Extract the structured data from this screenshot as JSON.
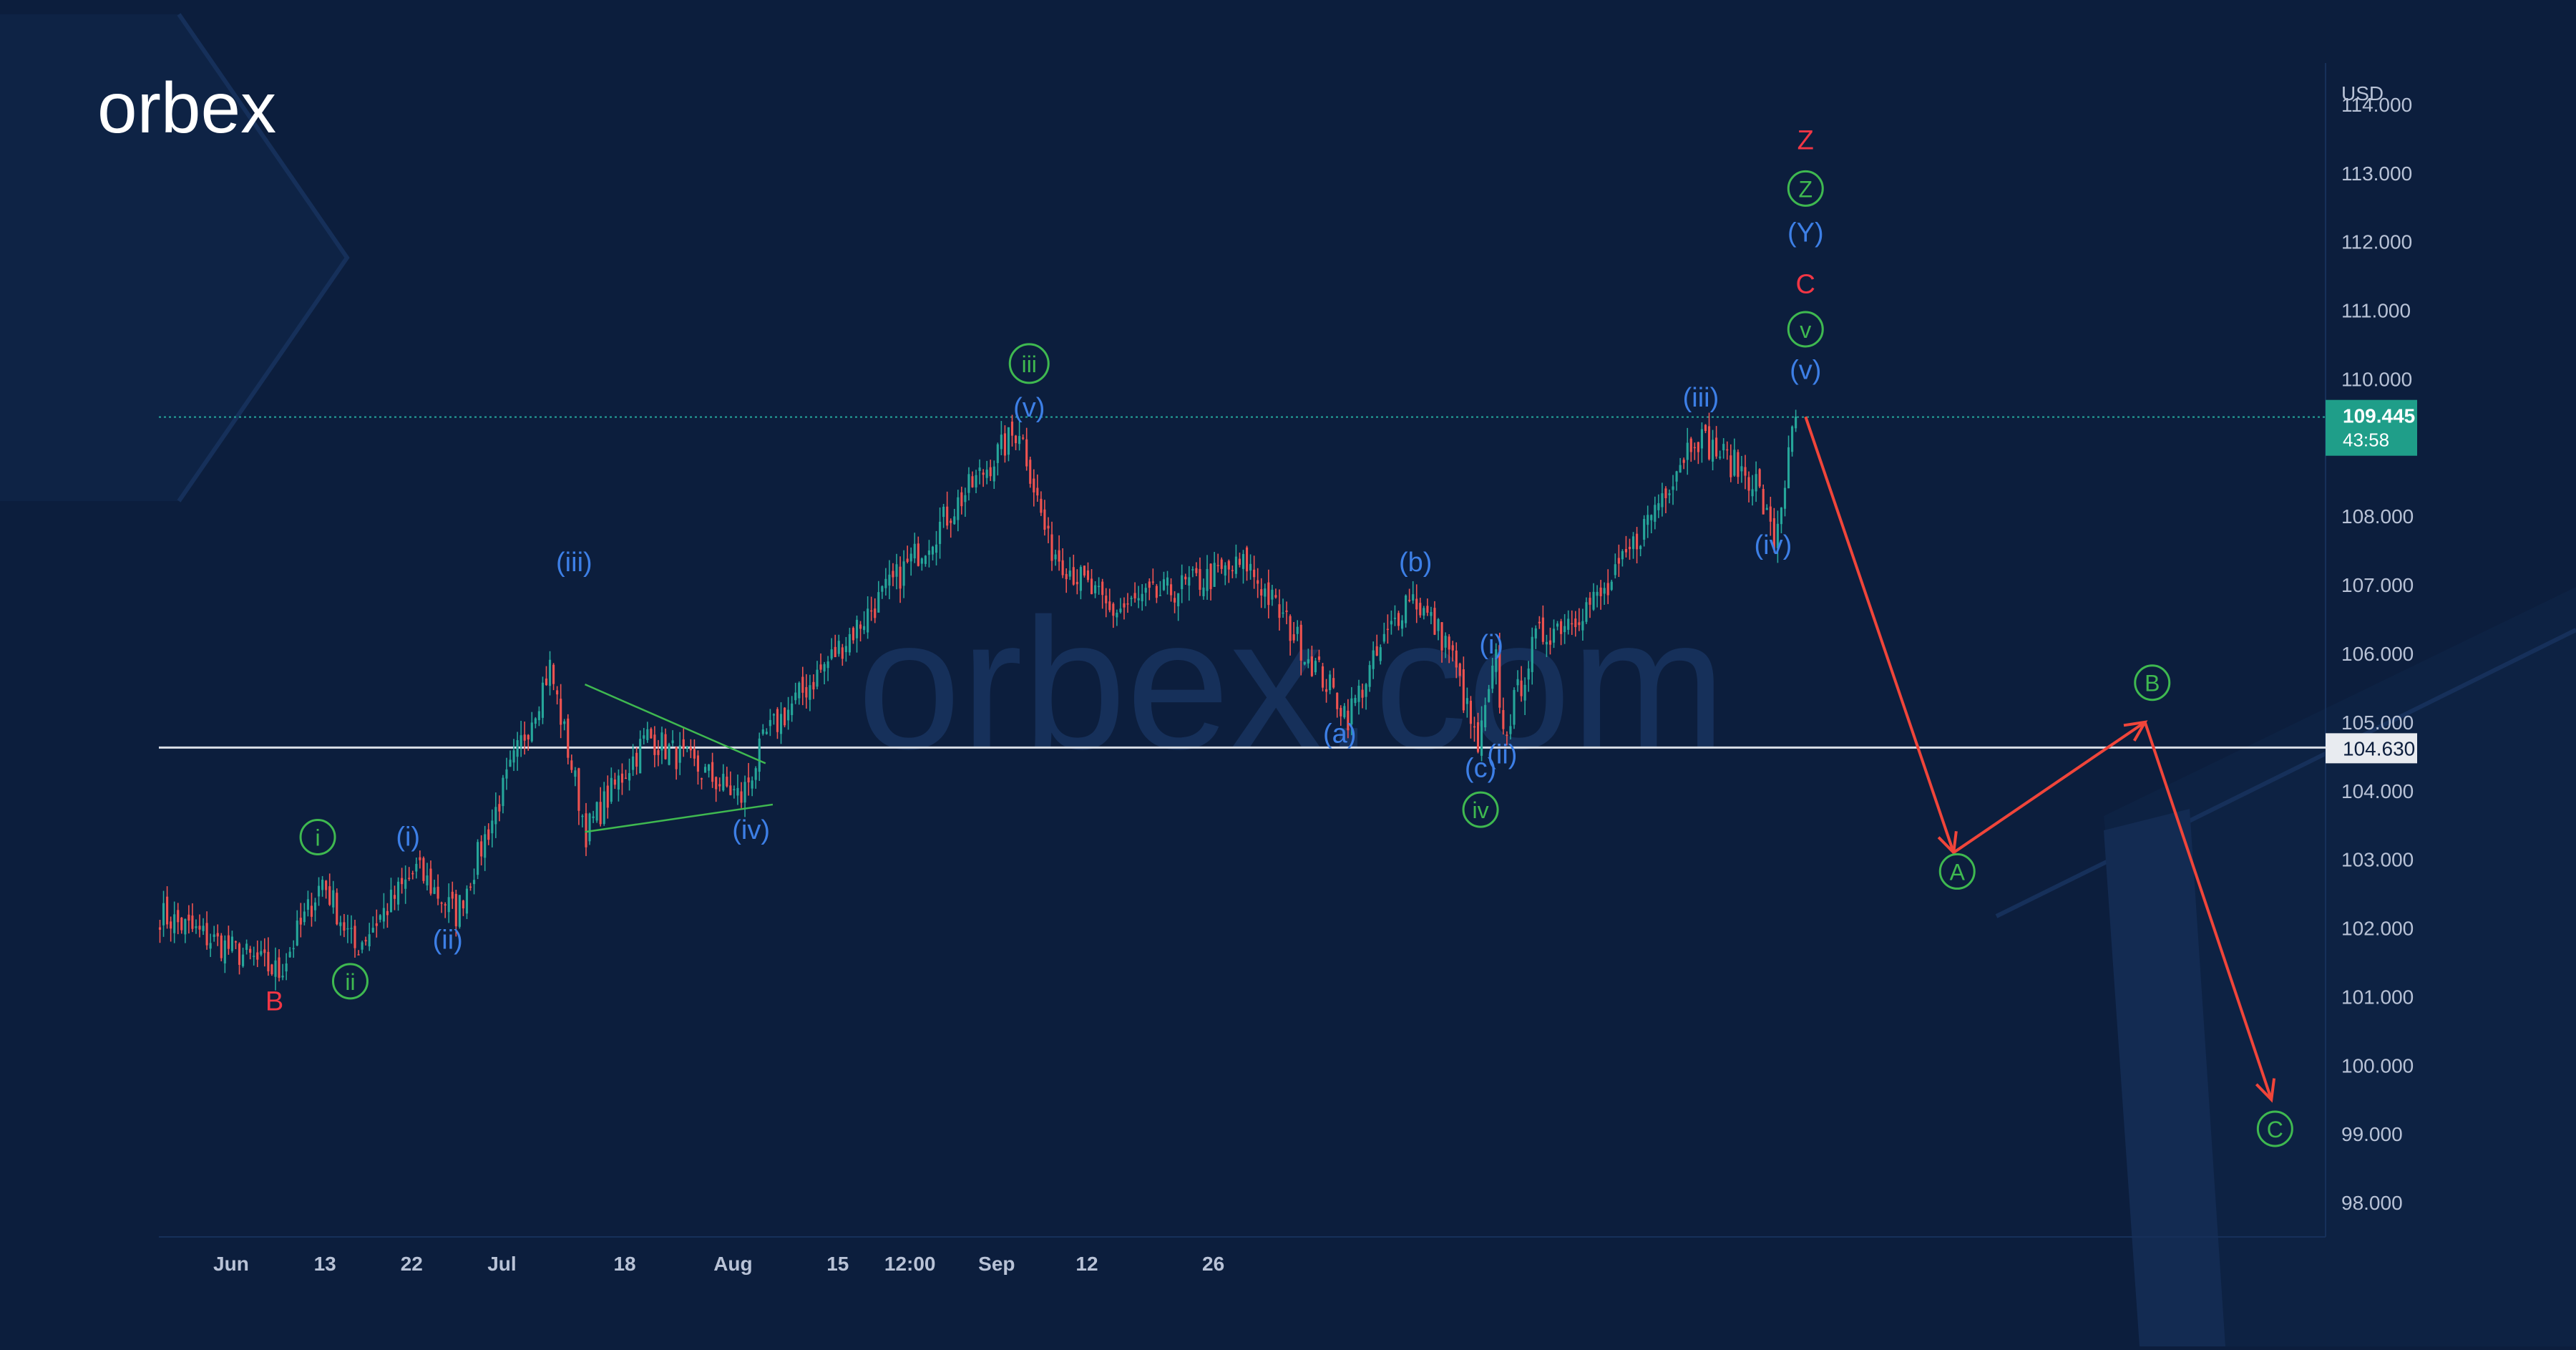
{
  "brand": {
    "logo_text": "orbex",
    "watermark": "orbex.com"
  },
  "colors": {
    "background": "#0c1e3d",
    "grid": "#16305a",
    "axis_text": "#b8c2d6",
    "candle_up": "#26a69a",
    "candle_down": "#ef5350",
    "wave_blue": "#3d7fe6",
    "wave_green": "#3fb950",
    "wave_red": "#f23645",
    "forecast": "#f0453a",
    "price_tag": "#1f9e89",
    "level_line": "#d8dde6"
  },
  "chart_data": {
    "type": "candlestick",
    "title": "",
    "currency_label": "USD",
    "ylim": [
      97.5,
      114.5
    ],
    "y_ticks": [
      "114.000",
      "113.000",
      "112.000",
      "111.000",
      "110.000",
      "109.000",
      "108.000",
      "107.000",
      "106.000",
      "105.000",
      "104.000",
      "103.000",
      "102.000",
      "101.000",
      "100.000",
      "99.000",
      "98.000"
    ],
    "x_ticks": [
      "Jun",
      "13",
      "22",
      "Jul",
      "18",
      "Aug",
      "15",
      "12:00",
      "Sep",
      "12",
      "26"
    ],
    "last_price": "109.445",
    "countdown": "43:58",
    "support_level": "104.630",
    "price_path_anchors": [
      {
        "t": 0,
        "price": 102.2
      },
      {
        "t": 33,
        "price": 101.35
      },
      {
        "t": 45,
        "price": 102.7
      },
      {
        "t": 54,
        "price": 101.7
      },
      {
        "t": 71,
        "price": 102.85
      },
      {
        "t": 82,
        "price": 102.2
      },
      {
        "t": 108,
        "price": 105.8
      },
      {
        "t": 118,
        "price": 103.4
      },
      {
        "t": 135,
        "price": 104.8
      },
      {
        "t": 161,
        "price": 103.9
      },
      {
        "t": 168,
        "price": 104.8
      },
      {
        "t": 201,
        "price": 106.9
      },
      {
        "t": 238,
        "price": 109.3
      },
      {
        "t": 246,
        "price": 107.6
      },
      {
        "t": 263,
        "price": 106.6
      },
      {
        "t": 301,
        "price": 107.3
      },
      {
        "t": 329,
        "price": 105.1
      },
      {
        "t": 346,
        "price": 106.9
      },
      {
        "t": 357,
        "price": 106.1
      },
      {
        "t": 365,
        "price": 104.6
      },
      {
        "t": 370,
        "price": 105.9
      },
      {
        "t": 372,
        "price": 104.8
      },
      {
        "t": 381,
        "price": 106.2
      },
      {
        "t": 401,
        "price": 106.9
      },
      {
        "t": 425,
        "price": 109.2
      },
      {
        "t": 442,
        "price": 108.5
      },
      {
        "t": 447,
        "price": 107.6
      },
      {
        "t": 453,
        "price": 109.45
      }
    ],
    "wave_labels": [
      {
        "text": "B",
        "t": 32,
        "price": 100.8,
        "color": "red",
        "circled": false
      },
      {
        "text": "i",
        "t": 44,
        "price": 103.2,
        "color": "green",
        "circled": true
      },
      {
        "text": "ii",
        "t": 53,
        "price": 101.1,
        "color": "green",
        "circled": true
      },
      {
        "text": "(i)",
        "t": 69,
        "price": 103.2,
        "color": "blue",
        "circled": false
      },
      {
        "text": "(ii)",
        "t": 80,
        "price": 101.7,
        "color": "blue",
        "circled": false
      },
      {
        "text": "(iii)",
        "t": 115,
        "price": 107.2,
        "color": "blue",
        "circled": false
      },
      {
        "text": "(iv)",
        "t": 164,
        "price": 103.3,
        "color": "blue",
        "circled": false
      },
      {
        "text": "iii",
        "t": 241,
        "price": 110.1,
        "color": "green",
        "circled": true
      },
      {
        "text": "(v)",
        "t": 241,
        "price": 109.45,
        "color": "blue",
        "circled": false
      },
      {
        "text": "(b)",
        "t": 348,
        "price": 107.2,
        "color": "blue",
        "circled": false
      },
      {
        "text": "(a)",
        "t": 327,
        "price": 104.7,
        "color": "blue",
        "circled": false
      },
      {
        "text": "(i)",
        "t": 369,
        "price": 106.0,
        "color": "blue",
        "circled": false
      },
      {
        "text": "(c)",
        "t": 366,
        "price": 104.2,
        "color": "blue",
        "circled": false
      },
      {
        "text": "(ii)",
        "t": 372,
        "price": 104.4,
        "color": "blue",
        "circled": false
      },
      {
        "text": "iv",
        "t": 366,
        "price": 103.6,
        "color": "green",
        "circled": true
      },
      {
        "text": "(iii)",
        "t": 427,
        "price": 109.6,
        "color": "blue",
        "circled": false
      },
      {
        "text": "(iv)",
        "t": 447,
        "price": 107.45,
        "color": "blue",
        "circled": false
      },
      {
        "text": "(v)",
        "t": 456,
        "price": 110.0,
        "color": "blue",
        "circled": false
      },
      {
        "text": "v",
        "t": 456,
        "price": 110.6,
        "color": "green",
        "circled": true
      },
      {
        "text": "C",
        "t": 456,
        "price": 111.25,
        "color": "red",
        "circled": false
      },
      {
        "text": "(Y)",
        "t": 456,
        "price": 112.0,
        "color": "blue",
        "circled": false
      },
      {
        "text": "Z",
        "t": 456,
        "price": 112.65,
        "color": "green",
        "circled": true
      },
      {
        "text": "Z",
        "t": 456,
        "price": 113.35,
        "color": "red",
        "circled": false
      },
      {
        "text": "A",
        "t": 498,
        "price": 102.7,
        "color": "green",
        "circled": true
      },
      {
        "text": "B",
        "t": 552,
        "price": 105.45,
        "color": "green",
        "circled": true
      },
      {
        "text": "C",
        "t": 586,
        "price": 98.95,
        "color": "green",
        "circled": true
      }
    ],
    "triangle_lines": [
      {
        "from": {
          "t": 118,
          "price": 105.55
        },
        "to": {
          "t": 168,
          "price": 104.4
        }
      },
      {
        "from": {
          "t": 118,
          "price": 103.4
        },
        "to": {
          "t": 170,
          "price": 103.8
        }
      }
    ],
    "forecast_path": [
      {
        "t": 456,
        "price": 109.45
      },
      {
        "t": 497,
        "price": 103.1
      },
      {
        "t": 550,
        "price": 105.0
      },
      {
        "t": 585,
        "price": 99.5
      }
    ],
    "current_price_level": 109.445,
    "horizontal_level": 104.63
  }
}
